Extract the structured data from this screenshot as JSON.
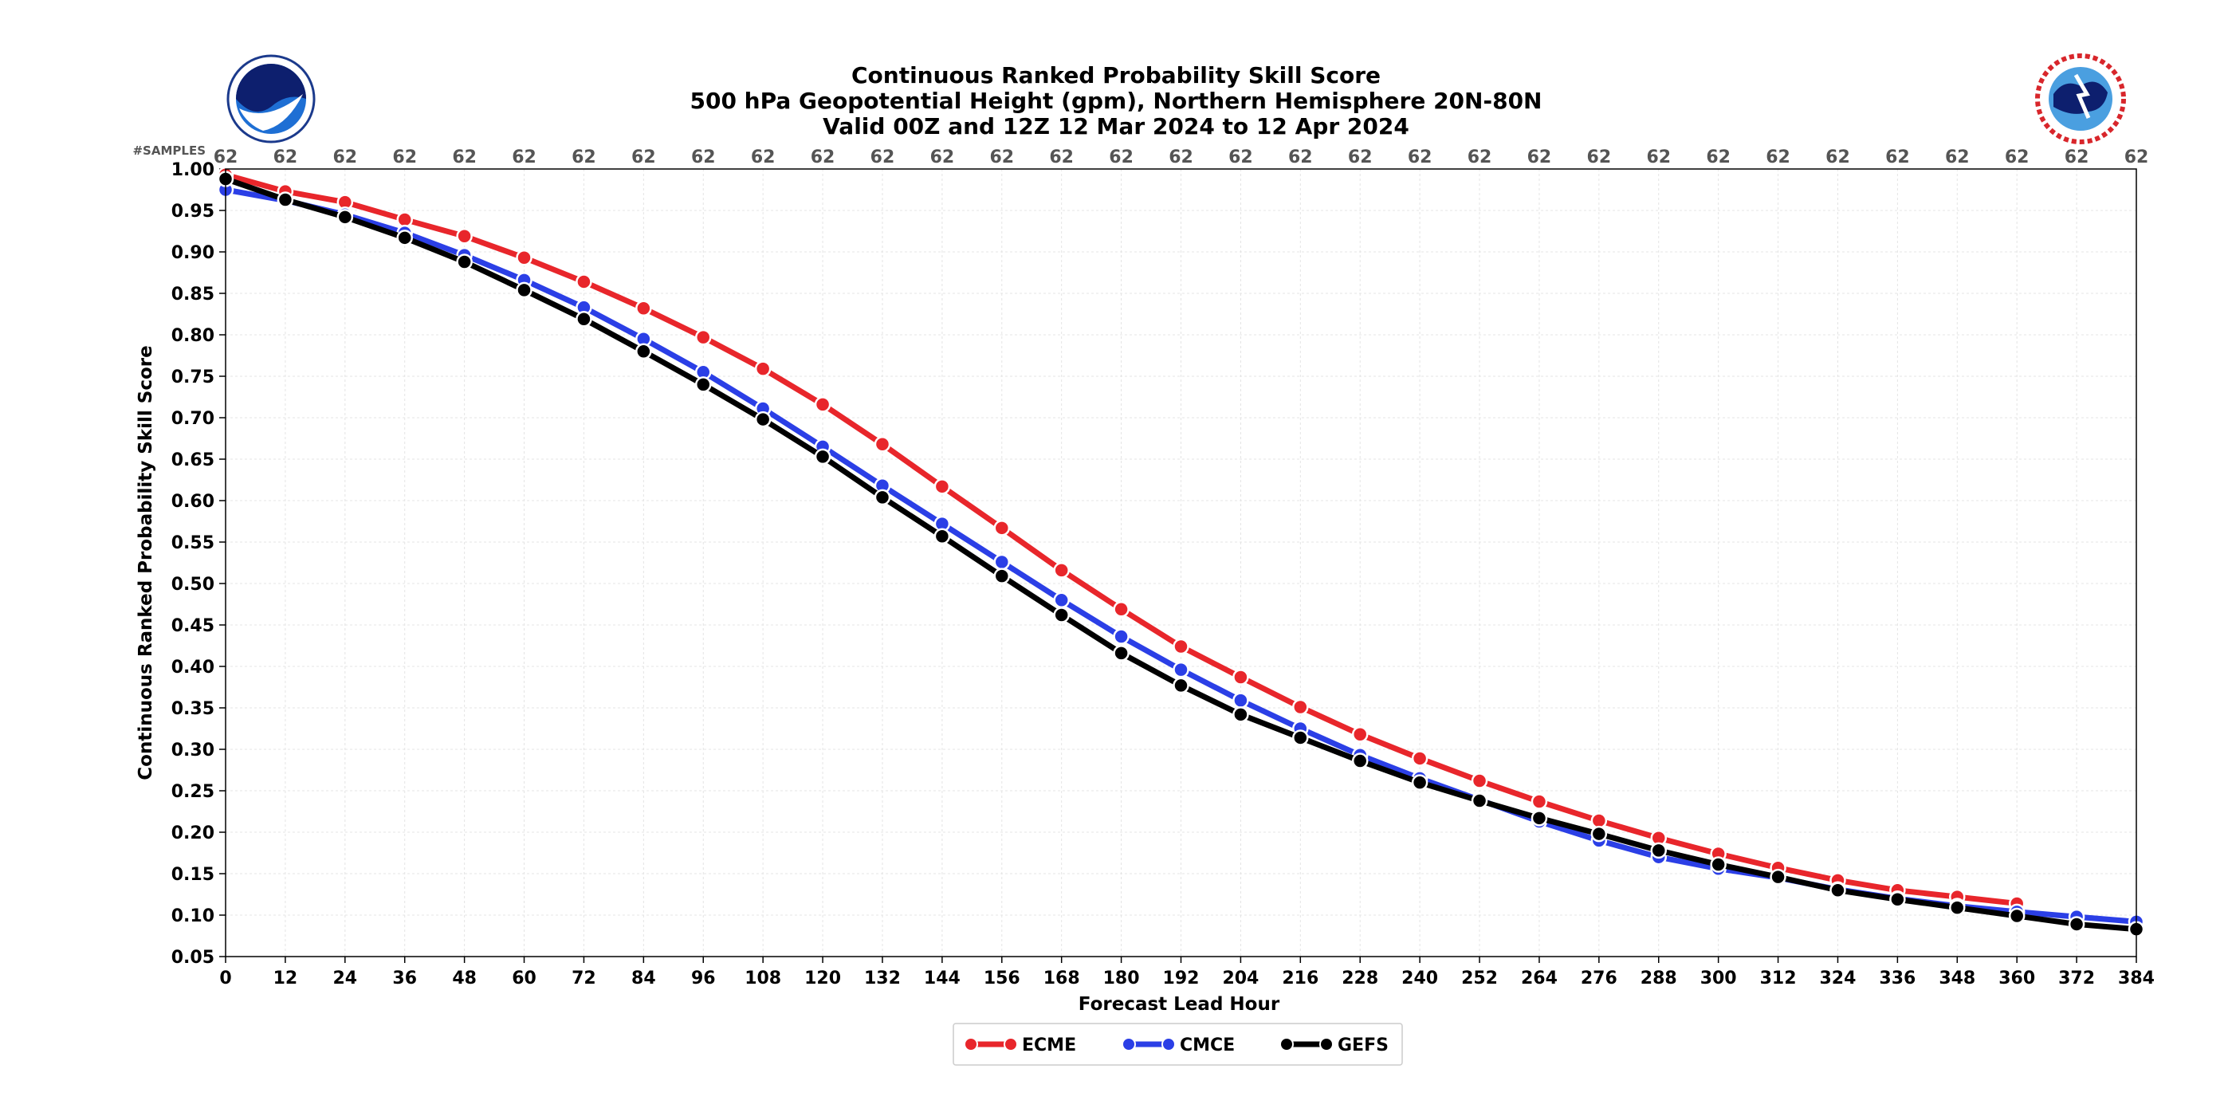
{
  "chart_data": {
    "type": "line",
    "title": [
      "Continuous Ranked Probability Skill Score",
      "500 hPa Geopotential Height (gpm), Northern Hemisphere 20N-80N",
      "Valid 00Z and 12Z 12 Mar 2024 to 12 Apr 2024"
    ],
    "xlabel": "Forecast Lead Hour",
    "ylabel": "Continuous Ranked Probability Skill Score",
    "xlim": [
      0,
      384
    ],
    "ylim": [
      0.05,
      1.0
    ],
    "x": [
      0,
      12,
      24,
      36,
      48,
      60,
      72,
      84,
      96,
      108,
      120,
      132,
      144,
      156,
      168,
      180,
      192,
      204,
      216,
      228,
      240,
      252,
      264,
      276,
      288,
      300,
      312,
      324,
      336,
      348,
      360,
      372,
      384
    ],
    "yticks": [
      "0.05",
      "0.10",
      "0.15",
      "0.20",
      "0.25",
      "0.30",
      "0.35",
      "0.40",
      "0.45",
      "0.50",
      "0.55",
      "0.60",
      "0.65",
      "0.70",
      "0.75",
      "0.80",
      "0.85",
      "0.90",
      "0.95",
      "1.00"
    ],
    "samples_label": "#SAMPLES",
    "samples": [
      "62",
      "62",
      "62",
      "62",
      "62",
      "62",
      "62",
      "62",
      "62",
      "62",
      "62",
      "62",
      "62",
      "62",
      "62",
      "62",
      "62",
      "62",
      "62",
      "62",
      "62",
      "62",
      "62",
      "62",
      "62",
      "62",
      "62",
      "62",
      "62",
      "62",
      "62",
      "62",
      "62"
    ],
    "grid": true,
    "legend_position": "bottom-center",
    "series": [
      {
        "name": "ECME",
        "color": "#e8262b",
        "values": [
          0.993,
          0.973,
          0.96,
          0.939,
          0.919,
          0.893,
          0.864,
          0.832,
          0.797,
          0.759,
          0.716,
          0.668,
          0.617,
          0.567,
          0.516,
          0.469,
          0.424,
          0.387,
          0.351,
          0.318,
          0.289,
          0.262,
          0.237,
          0.214,
          0.193,
          0.174,
          0.157,
          0.142,
          0.13,
          0.122,
          0.114,
          null,
          null
        ]
      },
      {
        "name": "CMCE",
        "color": "#2b3fe6",
        "values": [
          0.975,
          0.962,
          0.945,
          0.923,
          0.896,
          0.866,
          0.833,
          0.795,
          0.755,
          0.711,
          0.665,
          0.618,
          0.572,
          0.526,
          0.48,
          0.436,
          0.396,
          0.359,
          0.325,
          0.293,
          0.265,
          0.239,
          0.213,
          0.19,
          0.17,
          0.156,
          0.145,
          0.131,
          0.12,
          0.111,
          0.104,
          0.098,
          0.092
        ]
      },
      {
        "name": "GEFS",
        "color": "#000000",
        "values": [
          0.988,
          0.963,
          0.942,
          0.917,
          0.888,
          0.854,
          0.819,
          0.78,
          0.74,
          0.698,
          0.653,
          0.604,
          0.557,
          0.509,
          0.462,
          0.416,
          0.377,
          0.342,
          0.314,
          0.286,
          0.26,
          0.238,
          0.217,
          0.198,
          0.178,
          0.161,
          0.146,
          0.13,
          0.119,
          0.109,
          0.099,
          0.089,
          0.083
        ]
      }
    ]
  }
}
